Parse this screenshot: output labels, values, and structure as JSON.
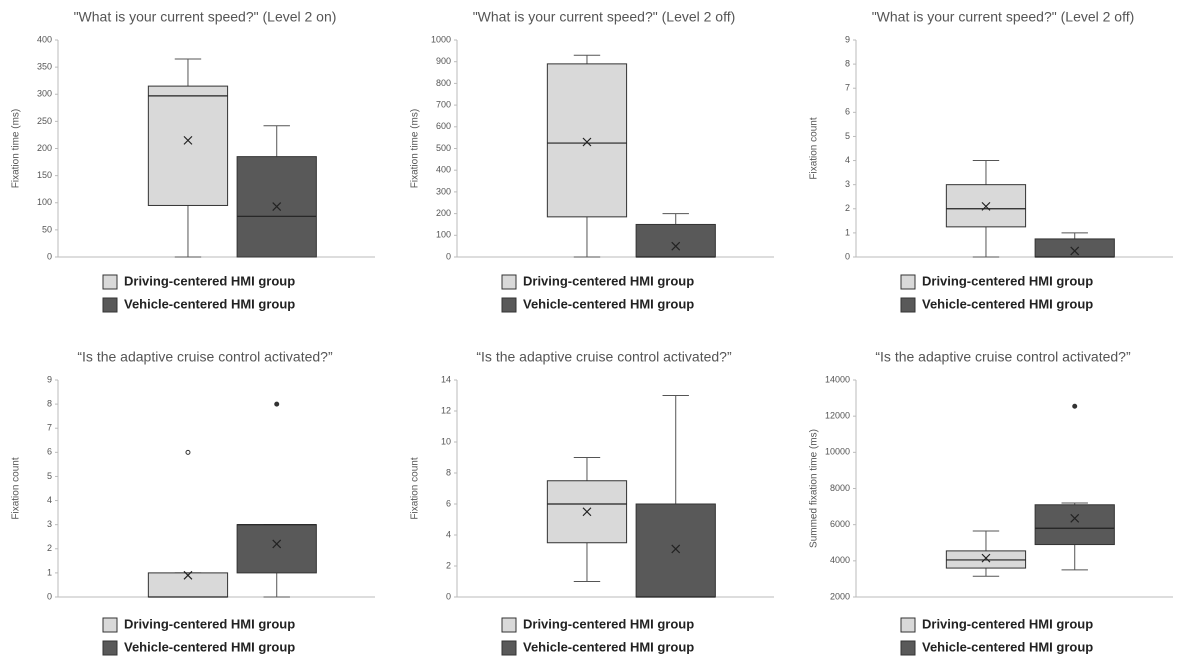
{
  "chart_data": [
    {
      "type": "box",
      "title": "\"What is your current speed?\"  (Level 2 on)",
      "y_label": "Fixation time (ms)",
      "ylim": [
        0,
        400
      ],
      "yticks": [
        0,
        50,
        100,
        150,
        200,
        250,
        300,
        350,
        400
      ],
      "series": [
        {
          "name": "Driving-centered HMI group",
          "color": "#d9d9d9",
          "min": 0,
          "q1": 95,
          "median": 297,
          "q3": 315,
          "max": 365,
          "mean": 215
        },
        {
          "name": "Vehicle-centered HMI group",
          "color": "#595959",
          "min": 0,
          "q1": 0,
          "median": 75,
          "q3": 185,
          "max": 242,
          "mean": 93
        }
      ]
    },
    {
      "type": "box",
      "title": "\"What is your current speed?\"  (Level 2 off)",
      "y_label": "Fixation time (ms)",
      "ylim": [
        0,
        1000
      ],
      "yticks": [
        0,
        100,
        200,
        300,
        400,
        500,
        600,
        700,
        800,
        900,
        1000
      ],
      "series": [
        {
          "name": "Driving-centered HMI group",
          "color": "#d9d9d9",
          "min": 0,
          "q1": 185,
          "median": 525,
          "q3": 890,
          "max": 930,
          "mean": 530
        },
        {
          "name": "Vehicle-centered HMI group",
          "color": "#595959",
          "min": 0,
          "q1": 0,
          "median": 0,
          "q3": 150,
          "max": 200,
          "mean": 50
        }
      ]
    },
    {
      "type": "box",
      "title": "\"What is your current speed?\"  (Level 2 off)",
      "y_label": "Fixation count",
      "ylim": [
        0,
        9
      ],
      "yticks": [
        0,
        1,
        2,
        3,
        4,
        5,
        6,
        7,
        8,
        9
      ],
      "series": [
        {
          "name": "Driving-centered HMI group",
          "color": "#d9d9d9",
          "min": 0,
          "q1": 1.25,
          "median": 2,
          "q3": 3,
          "max": 4,
          "mean": 2.1
        },
        {
          "name": "Vehicle-centered HMI group",
          "color": "#595959",
          "min": 0,
          "q1": 0,
          "median": 0,
          "q3": 0.75,
          "max": 1,
          "mean": 0.25
        }
      ]
    },
    {
      "type": "box",
      "title": "“Is the adaptive cruise control activated?”",
      "y_label": "Fixation count",
      "ylim": [
        0,
        9
      ],
      "yticks": [
        0,
        1,
        2,
        3,
        4,
        5,
        6,
        7,
        8,
        9
      ],
      "series": [
        {
          "name": "Driving-centered HMI group",
          "color": "#d9d9d9",
          "min": 0,
          "q1": 0,
          "median": 0,
          "q3": 1,
          "max": 1,
          "mean": 0.9,
          "outliers": [
            6
          ]
        },
        {
          "name": "Vehicle-centered HMI group",
          "color": "#595959",
          "min": 0,
          "q1": 1,
          "median": 3,
          "q3": 3,
          "max": 3,
          "mean": 2.2,
          "outliers": [
            8
          ]
        }
      ]
    },
    {
      "type": "box",
      "title": "“Is the adaptive cruise control activated?”",
      "y_label": "Fixation count",
      "ylim": [
        0,
        14
      ],
      "yticks": [
        0,
        2,
        4,
        6,
        8,
        10,
        12,
        14
      ],
      "series": [
        {
          "name": "Driving-centered HMI group",
          "color": "#d9d9d9",
          "min": 1,
          "q1": 3.5,
          "median": 6,
          "q3": 7.5,
          "max": 9,
          "mean": 5.5
        },
        {
          "name": "Vehicle-centered HMI group",
          "color": "#595959",
          "min": 0,
          "q1": 0,
          "median": 0,
          "q3": 6,
          "max": 13,
          "mean": 3.1
        }
      ]
    },
    {
      "type": "box",
      "title": "“Is the adaptive cruise control activated?”",
      "y_label": "Summed fixation time (ms)",
      "ylim": [
        2000,
        14000
      ],
      "yticks": [
        2000,
        4000,
        6000,
        8000,
        10000,
        12000,
        14000
      ],
      "series": [
        {
          "name": "Driving-centered HMI group",
          "color": "#d9d9d9",
          "min": 3150,
          "q1": 3600,
          "median": 4050,
          "q3": 4550,
          "max": 5650,
          "mean": 4150
        },
        {
          "name": "Vehicle-centered HMI group",
          "color": "#595959",
          "min": 3500,
          "q1": 4900,
          "median": 5800,
          "q3": 7100,
          "max": 7200,
          "mean": 6350,
          "outliers": [
            12550
          ]
        }
      ]
    }
  ]
}
